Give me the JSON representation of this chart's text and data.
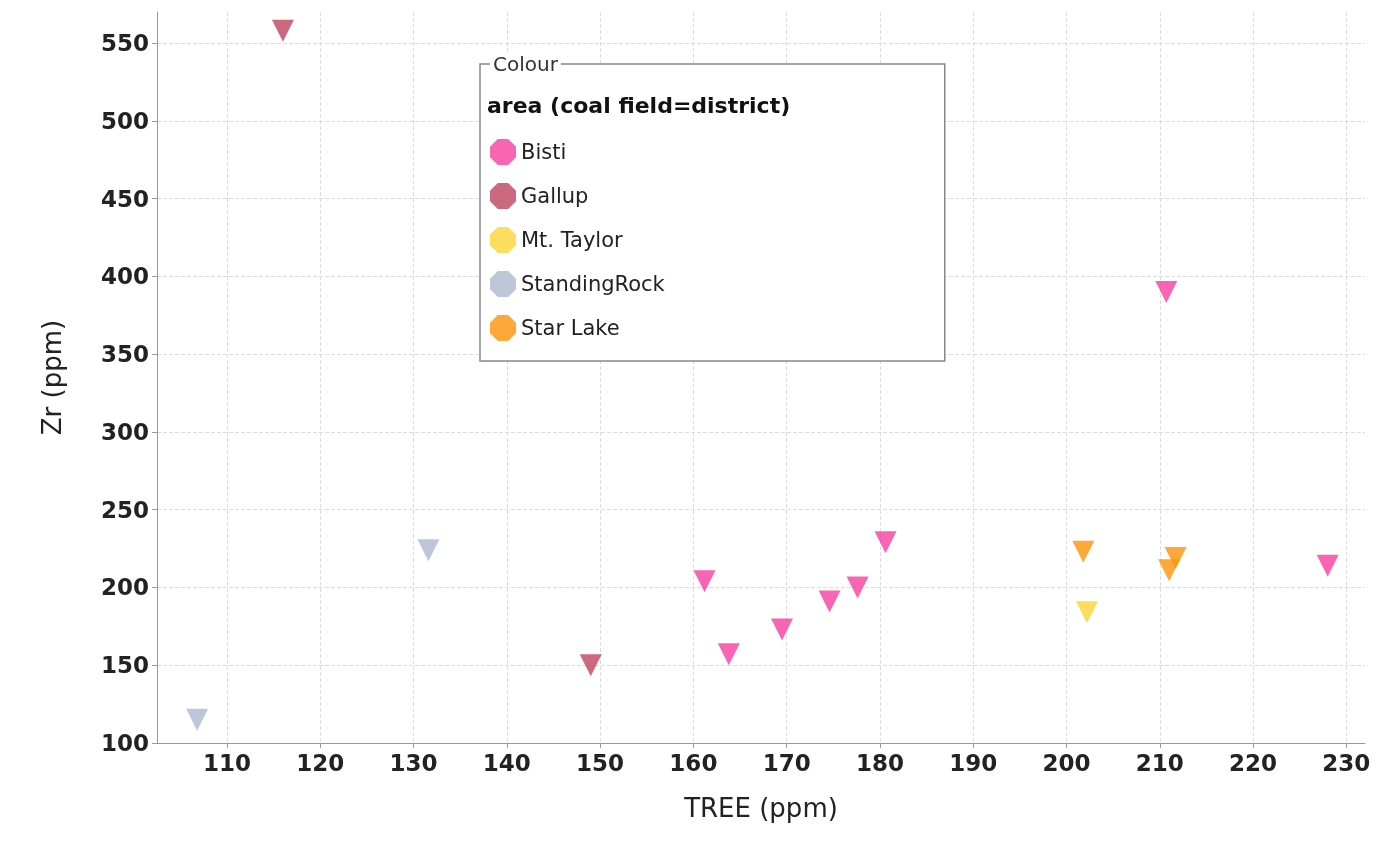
{
  "chart_data": {
    "type": "scatter",
    "xlabel": "TREE (ppm)",
    "ylabel": "Zr (ppm)",
    "legend_title": "Colour",
    "subtitle": "area (coal field=district)",
    "xlim": [
      102.5,
      232
    ],
    "xticks": [
      110,
      120,
      130,
      140,
      150,
      160,
      170,
      180,
      190,
      200,
      210,
      220,
      230
    ],
    "ylim": [
      100,
      570
    ],
    "yticks": [
      100,
      150,
      200,
      250,
      300,
      350,
      400,
      450,
      500,
      550
    ],
    "grid": true,
    "legend": "top",
    "marker": "triangle",
    "series": [
      {
        "name": "Bisti",
        "color": "#f63ea0",
        "x": [
          161.2,
          163.8,
          169.5,
          174.6,
          177.6,
          180.6,
          210.7,
          228.0
        ],
        "values": [
          204,
          157,
          173,
          191,
          200,
          229,
          390,
          214
        ]
      },
      {
        "name": "Gallup",
        "color": "#c0435f",
        "x": [
          116.0,
          149.0
        ],
        "values": [
          558,
          150
        ]
      },
      {
        "name": "Mt. Taylor",
        "color": "#fcd535",
        "x": [
          202.2
        ],
        "values": [
          184
        ]
      },
      {
        "name": "StandingRock",
        "color": "#aeb8cf",
        "x": [
          106.8,
          131.6
        ],
        "values": [
          115,
          224
        ]
      },
      {
        "name": "Star Lake",
        "color": "#fb9408",
        "x": [
          201.8,
          211.0,
          211.7
        ],
        "values": [
          223,
          211,
          219
        ]
      }
    ]
  }
}
